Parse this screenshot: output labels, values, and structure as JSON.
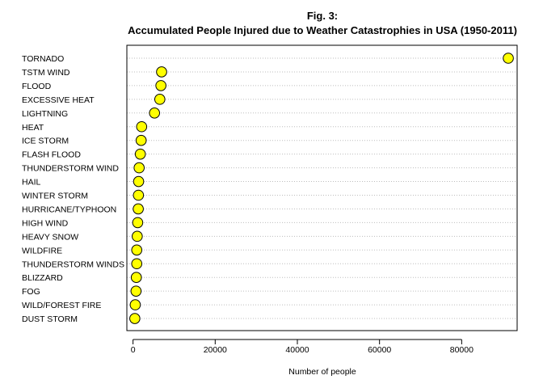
{
  "chart_data": {
    "type": "scatter",
    "title_line1": "Fig. 3:",
    "title_line2": "Accumulated People Injured due to Weather Catastrophies in USA (1950-2011)",
    "xlabel": "Number of people",
    "ylabel": "",
    "xticks": [
      0,
      20000,
      40000,
      60000,
      80000
    ],
    "xlim": [
      -1500,
      93500
    ],
    "grid": "horizontal dotted",
    "point_fill": "#ffff00",
    "point_stroke": "#000000",
    "categories": [
      "TORNADO",
      "TSTM WIND",
      "FLOOD",
      "EXCESSIVE HEAT",
      "LIGHTNING",
      "HEAT",
      "ICE STORM",
      "FLASH FLOOD",
      "THUNDERSTORM WIND",
      "HAIL",
      "WINTER STORM",
      "HURRICANE/TYPHOON",
      "HIGH WIND",
      "HEAVY SNOW",
      "WILDFIRE",
      "THUNDERSTORM WINDS",
      "BLIZZARD",
      "FOG",
      "WILD/FOREST FIRE",
      "DUST STORM"
    ],
    "values": [
      91346,
      6957,
      6789,
      6525,
      5230,
      2100,
      1975,
      1777,
      1488,
      1361,
      1321,
      1275,
      1137,
      1021,
      911,
      908,
      805,
      734,
      545,
      440
    ]
  }
}
